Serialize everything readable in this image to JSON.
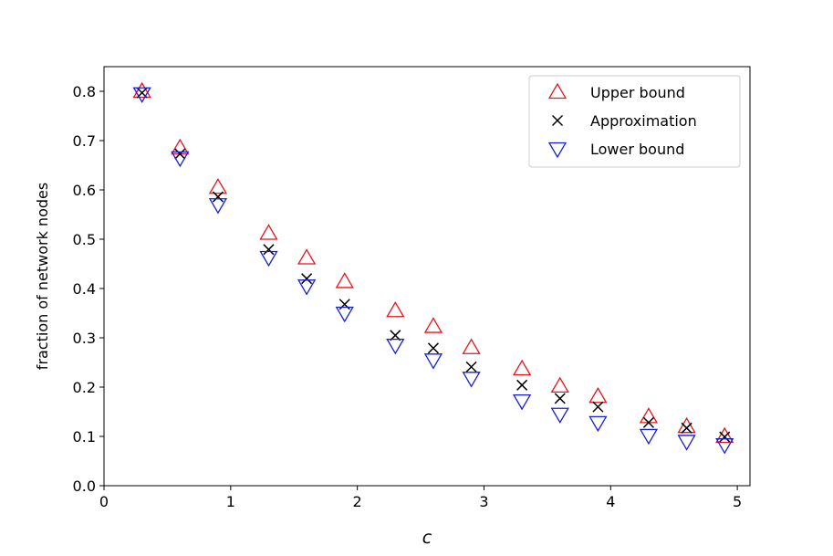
{
  "chart_data": {
    "type": "scatter",
    "title": "",
    "xlabel": "c",
    "ylabel": "fraction of network nodes",
    "xlim": [
      0,
      5.1
    ],
    "ylim": [
      0,
      0.85
    ],
    "xticks": [
      0,
      1,
      2,
      3,
      4,
      5
    ],
    "xtick_labels": [
      "0",
      "1",
      "2",
      "3",
      "4",
      "5"
    ],
    "yticks": [
      0.0,
      0.1,
      0.2,
      0.3,
      0.4,
      0.5,
      0.6,
      0.7,
      0.8
    ],
    "ytick_labels": [
      "0.0",
      "0.1",
      "0.2",
      "0.3",
      "0.4",
      "0.5",
      "0.6",
      "0.7",
      "0.8"
    ],
    "grid": false,
    "legend_position": "top-right",
    "x": [
      0.3,
      0.6,
      0.9,
      1.3,
      1.6,
      1.9,
      2.3,
      2.6,
      2.9,
      3.3,
      3.6,
      3.9,
      4.3,
      4.6,
      4.9
    ],
    "series": [
      {
        "name": "Upper bound",
        "marker": "triangle-up",
        "color": "#e8141c",
        "values": [
          0.8,
          0.685,
          0.605,
          0.512,
          0.462,
          0.414,
          0.355,
          0.323,
          0.28,
          0.237,
          0.202,
          0.181,
          0.14,
          0.12,
          0.1
        ]
      },
      {
        "name": "Approximation",
        "marker": "x",
        "color": "#000000",
        "values": [
          0.797,
          0.673,
          0.586,
          0.479,
          0.42,
          0.368,
          0.305,
          0.279,
          0.241,
          0.204,
          0.177,
          0.16,
          0.128,
          0.117,
          0.099
        ]
      },
      {
        "name": "Lower bound",
        "marker": "triangle-down",
        "color": "#1420d4",
        "values": [
          0.795,
          0.665,
          0.57,
          0.463,
          0.405,
          0.35,
          0.285,
          0.255,
          0.218,
          0.172,
          0.145,
          0.128,
          0.102,
          0.09,
          0.083
        ]
      }
    ]
  }
}
